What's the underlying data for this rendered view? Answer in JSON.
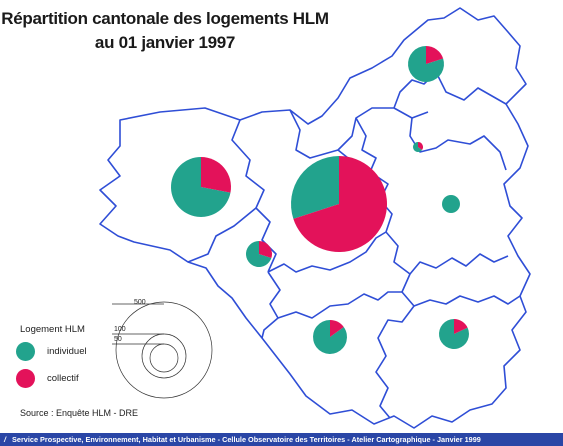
{
  "title": {
    "line1": "Répartition cantonale des logements HLM",
    "line2": "au 01 janvier 1997"
  },
  "colors": {
    "individuel": "#22a38d",
    "collectif": "#e3125a",
    "boundary": "#2f4ed6",
    "footer": "#2a46a6"
  },
  "legend": {
    "title": "Logement HLM",
    "items": [
      {
        "label": "individuel",
        "color": "#22a38d"
      },
      {
        "label": "collectif",
        "color": "#e3125a"
      }
    ]
  },
  "scale": {
    "values": [
      "500",
      "100",
      "50"
    ]
  },
  "cantons": [
    {
      "name": "canton-north",
      "individuel_share": 0.8
    },
    {
      "name": "canton-west",
      "individuel_share": 0.72
    },
    {
      "name": "canton-central",
      "individuel_share": 0.3
    },
    {
      "name": "canton-small-west",
      "individuel_share": 0.7
    },
    {
      "name": "canton-small-east",
      "individuel_share": 0.65
    },
    {
      "name": "canton-east",
      "individuel_share": 1.0
    },
    {
      "name": "canton-south-west",
      "individuel_share": 0.85
    },
    {
      "name": "canton-south-east",
      "individuel_share": 0.82
    }
  ],
  "source": "Source : Enquête HLM - DRE",
  "footer": {
    "text": "Service Prospective, Environnement, Habitat et Urbanisme - Cellule Observatoire des Territoires - Atelier Cartographique - Janvier 1999"
  }
}
